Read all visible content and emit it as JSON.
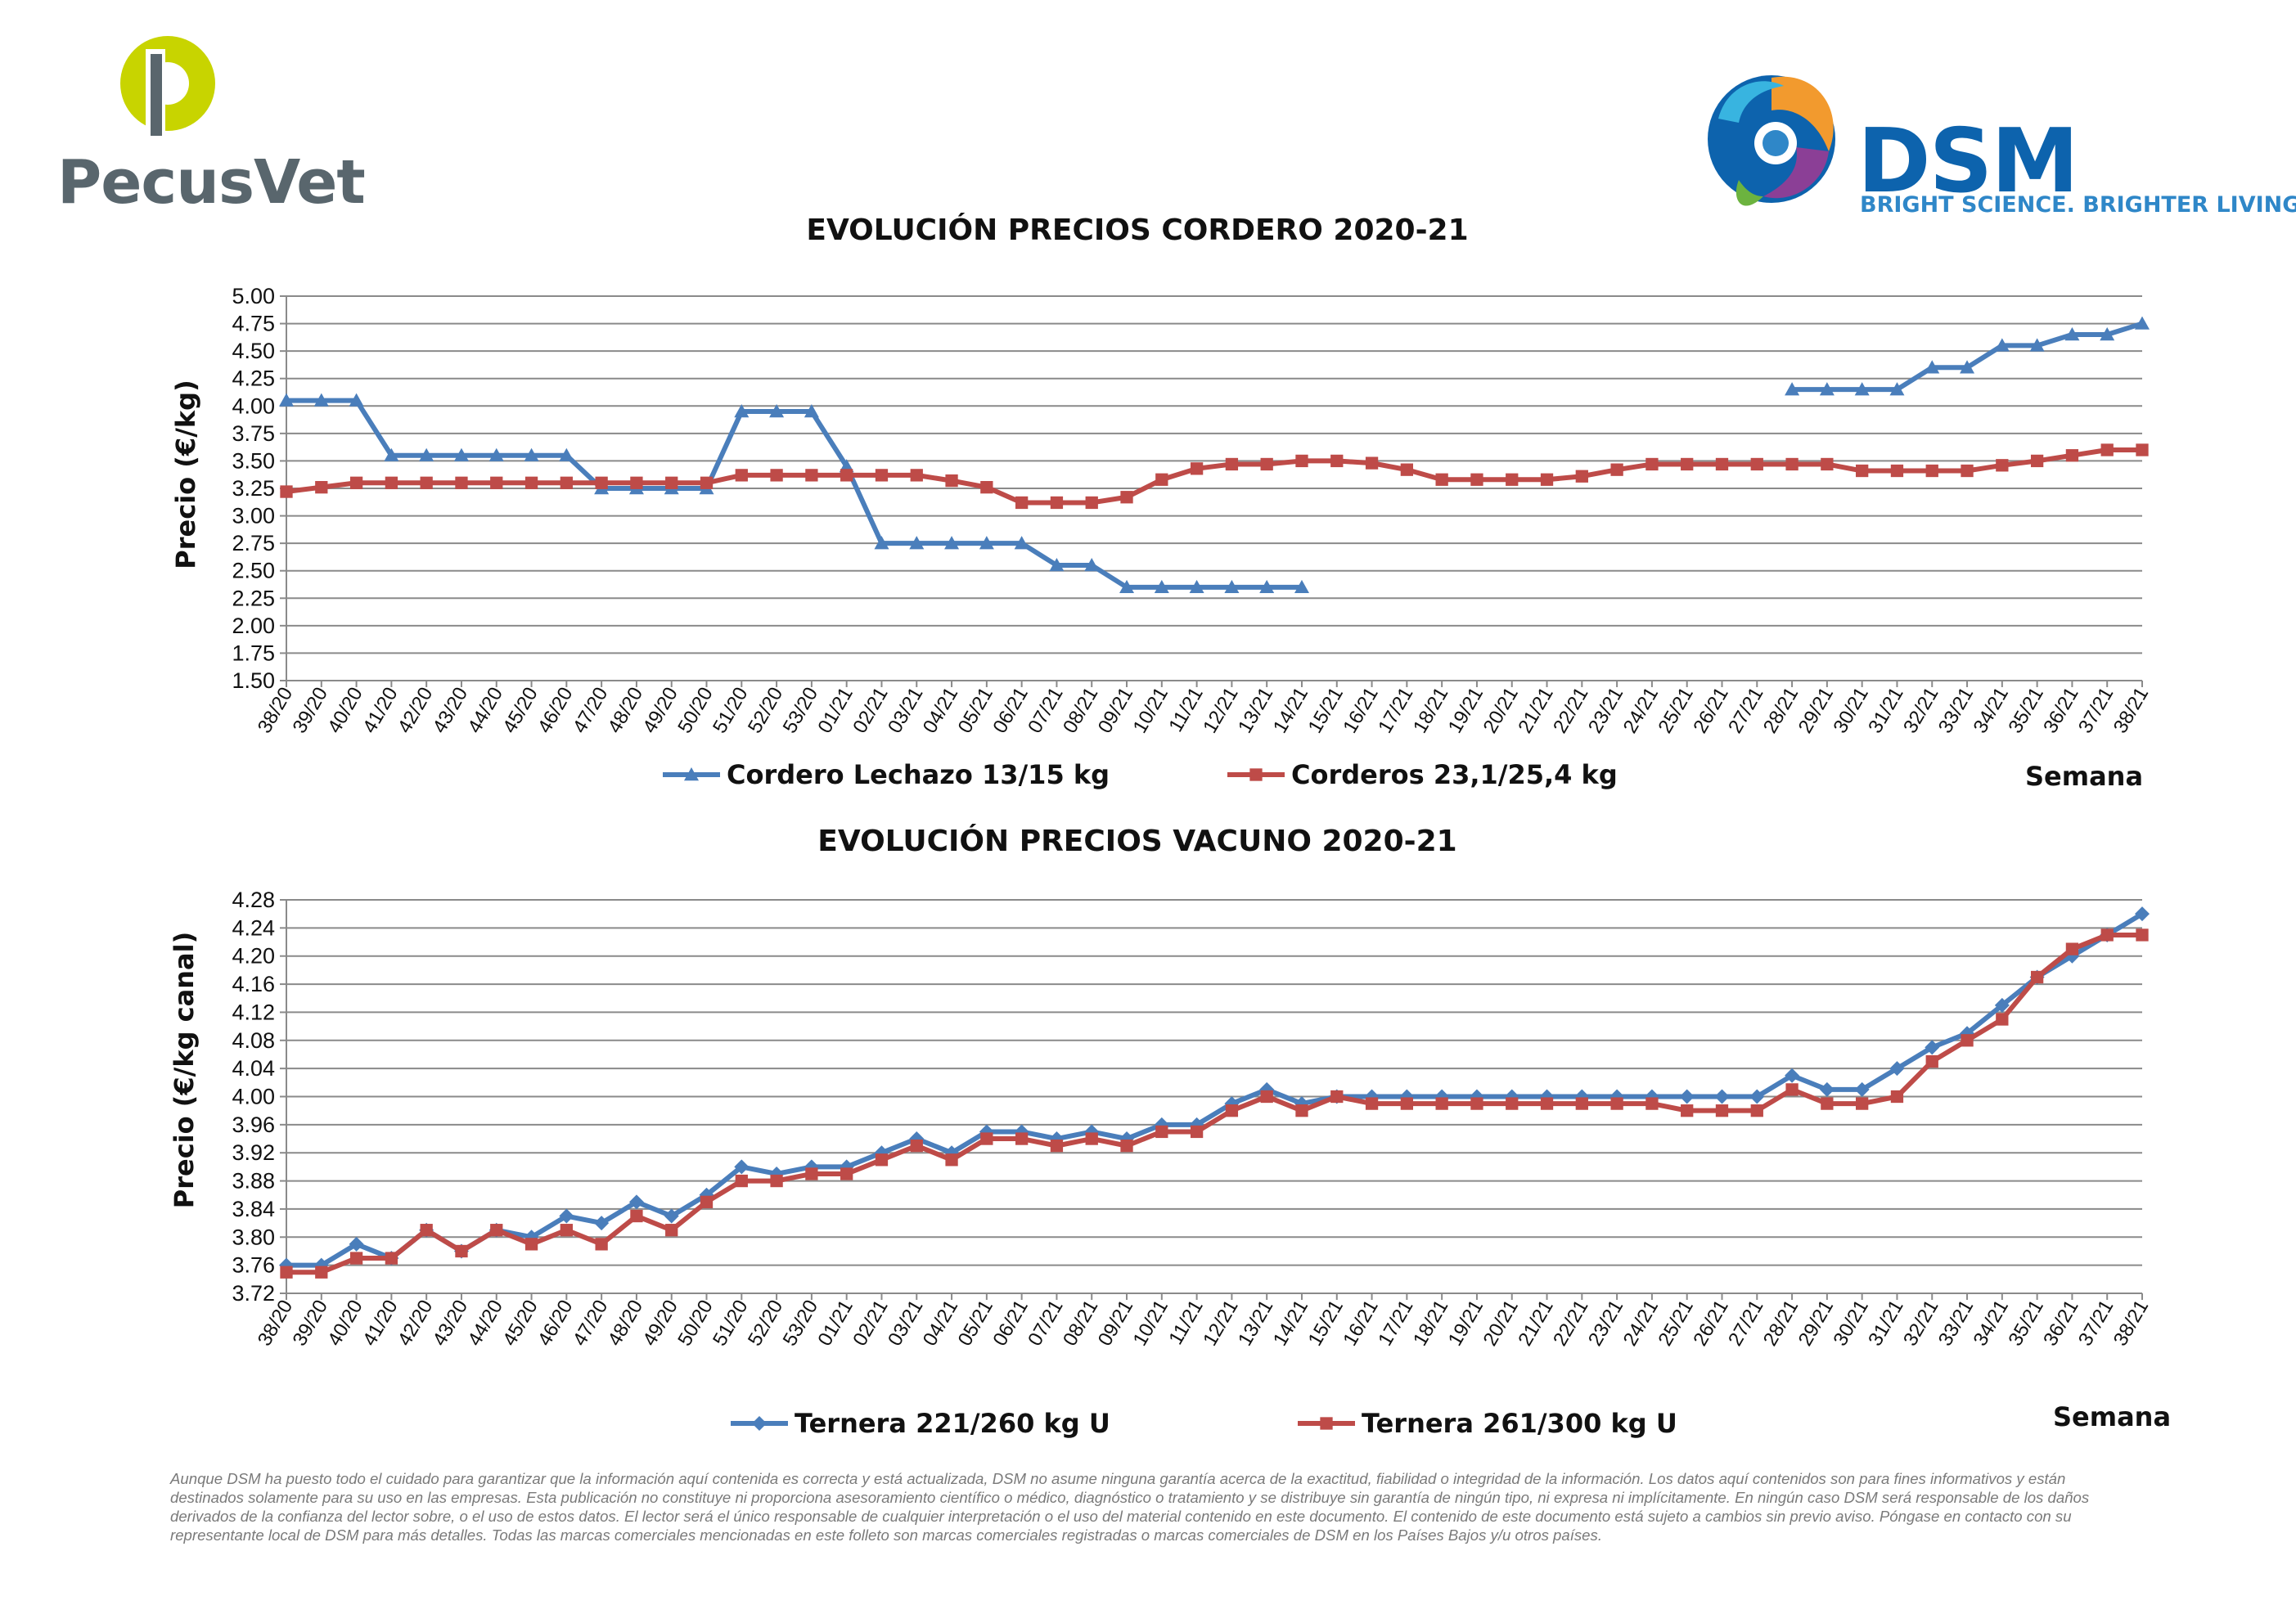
{
  "logos": {
    "pecusvet": {
      "text": "PecusVet",
      "colors": {
        "mark": "#c8d400",
        "text": "#59666d"
      }
    },
    "dsm": {
      "text": "DSM",
      "tagline": "BRIGHT SCIENCE. BRIGHTER LIVING.",
      "colors": {
        "word": "#0d63ad",
        "tagline": "#2f87c8"
      }
    }
  },
  "chart_data": [
    {
      "type": "line",
      "title": "EVOLUCIÓN PRECIOS CORDERO 2020-21",
      "ylabel": "Precio (€/kg)",
      "xlabel": "Semana",
      "ylim": [
        1.5,
        5.0
      ],
      "yticks": [
        "5.00",
        "4.75",
        "4.50",
        "4.25",
        "4.00",
        "3.75",
        "3.50",
        "3.25",
        "3.00",
        "2.75",
        "2.50",
        "2.25",
        "2.00",
        "1.75",
        "1.50"
      ],
      "grid": true,
      "legend_position": "bottom",
      "categories": [
        "38/20",
        "39/20",
        "40/20",
        "41/20",
        "42/20",
        "43/20",
        "44/20",
        "45/20",
        "46/20",
        "47/20",
        "48/20",
        "49/20",
        "50/20",
        "51/20",
        "52/20",
        "53/20",
        "01/21",
        "02/21",
        "03/21",
        "04/21",
        "05/21",
        "06/21",
        "07/21",
        "08/21",
        "09/21",
        "10/21",
        "11/21",
        "12/21",
        "13/21",
        "14/21",
        "15/21",
        "16/21",
        "17/21",
        "18/21",
        "19/21",
        "20/21",
        "21/21",
        "22/21",
        "23/21",
        "24/21",
        "25/21",
        "26/21",
        "27/21",
        "28/21",
        "29/21",
        "30/21",
        "31/21",
        "32/21",
        "33/21",
        "34/21",
        "35/21",
        "36/21",
        "37/21",
        "38/21"
      ],
      "series": [
        {
          "name": "Cordero Lechazo 13/15 kg",
          "color": "#4a7ebb",
          "marker": "triangle",
          "values": [
            4.05,
            4.05,
            4.05,
            3.55,
            3.55,
            3.55,
            3.55,
            3.55,
            3.55,
            3.25,
            3.25,
            3.25,
            3.25,
            3.95,
            3.95,
            3.95,
            3.45,
            2.75,
            2.75,
            2.75,
            2.75,
            2.75,
            2.55,
            2.55,
            2.35,
            2.35,
            2.35,
            2.35,
            2.35,
            2.35,
            null,
            null,
            null,
            null,
            null,
            null,
            null,
            null,
            null,
            null,
            null,
            null,
            null,
            4.15,
            4.15,
            4.15,
            4.15,
            4.35,
            4.35,
            4.55,
            4.55,
            4.65,
            4.65,
            4.75
          ]
        },
        {
          "name": "Corderos 23,1/25,4 kg",
          "color": "#be4b48",
          "marker": "square",
          "values": [
            3.22,
            3.26,
            3.3,
            3.3,
            3.3,
            3.3,
            3.3,
            3.3,
            3.3,
            3.3,
            3.3,
            3.3,
            3.3,
            3.37,
            3.37,
            3.37,
            3.37,
            3.37,
            3.37,
            3.32,
            3.26,
            3.12,
            3.12,
            3.12,
            3.17,
            3.33,
            3.43,
            3.47,
            3.47,
            3.5,
            3.5,
            3.48,
            3.42,
            3.33,
            3.33,
            3.33,
            3.33,
            3.36,
            3.42,
            3.47,
            3.47,
            3.47,
            3.47,
            3.47,
            3.47,
            3.41,
            3.41,
            3.41,
            3.41,
            3.46,
            3.5,
            3.55,
            3.6,
            3.6
          ]
        }
      ]
    },
    {
      "type": "line",
      "title": "EVOLUCIÓN PRECIOS VACUNO 2020-21",
      "ylabel": "Precio (€/kg canal)",
      "xlabel": "Semana",
      "ylim": [
        3.72,
        4.28
      ],
      "yticks": [
        "4.28",
        "4.24",
        "4.20",
        "4.16",
        "4.12",
        "4.08",
        "4.04",
        "4.00",
        "3.96",
        "3.92",
        "3.88",
        "3.84",
        "3.80",
        "3.76",
        "3.72"
      ],
      "grid": true,
      "legend_position": "bottom",
      "categories": [
        "38/20",
        "39/20",
        "40/20",
        "41/20",
        "42/20",
        "43/20",
        "44/20",
        "45/20",
        "46/20",
        "47/20",
        "48/20",
        "49/20",
        "50/20",
        "51/20",
        "52/20",
        "53/20",
        "01/21",
        "02/21",
        "03/21",
        "04/21",
        "05/21",
        "06/21",
        "07/21",
        "08/21",
        "09/21",
        "10/21",
        "11/21",
        "12/21",
        "13/21",
        "14/21",
        "15/21",
        "16/21",
        "17/21",
        "18/21",
        "19/21",
        "20/21",
        "21/21",
        "22/21",
        "23/21",
        "24/21",
        "25/21",
        "26/21",
        "27/21",
        "28/21",
        "29/21",
        "30/21",
        "31/21",
        "32/21",
        "33/21",
        "34/21",
        "35/21",
        "36/21",
        "37/21",
        "38/21"
      ],
      "series": [
        {
          "name": "Ternera 221/260 kg U",
          "color": "#4a7ebb",
          "marker": "diamond",
          "values": [
            3.76,
            3.76,
            3.79,
            3.77,
            3.81,
            3.78,
            3.81,
            3.8,
            3.83,
            3.82,
            3.85,
            3.83,
            3.86,
            3.9,
            3.89,
            3.9,
            3.9,
            3.92,
            3.94,
            3.92,
            3.95,
            3.95,
            3.94,
            3.95,
            3.94,
            3.96,
            3.96,
            3.99,
            4.01,
            3.99,
            4.0,
            4.0,
            4.0,
            4.0,
            4.0,
            4.0,
            4.0,
            4.0,
            4.0,
            4.0,
            4.0,
            4.0,
            4.0,
            4.03,
            4.01,
            4.01,
            4.04,
            4.07,
            4.09,
            4.13,
            4.17,
            4.2,
            4.23,
            4.26
          ]
        },
        {
          "name": "Ternera 261/300 kg U",
          "color": "#be4b48",
          "marker": "square",
          "values": [
            3.75,
            3.75,
            3.77,
            3.77,
            3.81,
            3.78,
            3.81,
            3.79,
            3.81,
            3.79,
            3.83,
            3.81,
            3.85,
            3.88,
            3.88,
            3.89,
            3.89,
            3.91,
            3.93,
            3.91,
            3.94,
            3.94,
            3.93,
            3.94,
            3.93,
            3.95,
            3.95,
            3.98,
            4.0,
            3.98,
            4.0,
            3.99,
            3.99,
            3.99,
            3.99,
            3.99,
            3.99,
            3.99,
            3.99,
            3.99,
            3.98,
            3.98,
            3.98,
            4.01,
            3.99,
            3.99,
            4.0,
            4.05,
            4.08,
            4.11,
            4.17,
            4.21,
            4.23,
            4.23
          ]
        }
      ]
    }
  ],
  "disclaimer": "Aunque DSM ha puesto todo el cuidado para garantizar que la información aquí contenida es correcta y está actualizada, DSM no asume ninguna garantía acerca de la exactitud, fiabilidad o integridad de la información. Los datos aquí contenidos son para fines informativos y están destinados solamente para su uso en las empresas. Esta publicación no constituye ni proporciona asesoramiento científico o médico, diagnóstico o tratamiento y se distribuye sin garantía de ningún tipo, ni expresa ni implícitamente. En ningún caso DSM será responsable de los daños derivados de la confianza del lector sobre, o el uso de estos datos. El lector será el único responsable de cualquier interpretación o el uso del material contenido en este documento. El contenido de este documento está sujeto a cambios sin previo aviso. Póngase en contacto con su representante local de DSM para más detalles. Todas las marcas comerciales mencionadas en este folleto son marcas comerciales registradas o marcas comerciales de DSM en los Países Bajos y/u otros países."
}
